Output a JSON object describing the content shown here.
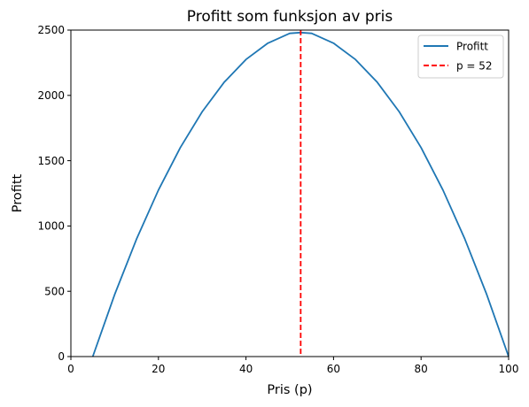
{
  "chart_data": {
    "type": "line",
    "title": "Profitt som funksjon av pris",
    "xlabel": "Pris (p)",
    "ylabel": "Profitt",
    "xlim": [
      0,
      100
    ],
    "ylim": [
      0,
      2500
    ],
    "xticks": [
      0,
      20,
      40,
      60,
      80,
      100
    ],
    "yticks": [
      0,
      500,
      1000,
      1500,
      2000,
      2500
    ],
    "grid": false,
    "legend": "top-right",
    "series": [
      {
        "name": "Profitt",
        "style": "solid",
        "color": "#1f77b4",
        "x": [
          5,
          10,
          15,
          20,
          25,
          30,
          35,
          40,
          45,
          50,
          52.5,
          55,
          60,
          65,
          70,
          75,
          80,
          85,
          90,
          95,
          100
        ],
        "y": [
          0,
          475,
          900,
          1275,
          1600,
          1875,
          2100,
          2275,
          2400,
          2475,
          2481,
          2475,
          2400,
          2275,
          2100,
          1875,
          1600,
          1275,
          900,
          475,
          0
        ]
      }
    ],
    "vlines": [
      {
        "name": "p = 52",
        "x": 52.5,
        "style": "dashed",
        "color": "#ff0000"
      }
    ]
  }
}
